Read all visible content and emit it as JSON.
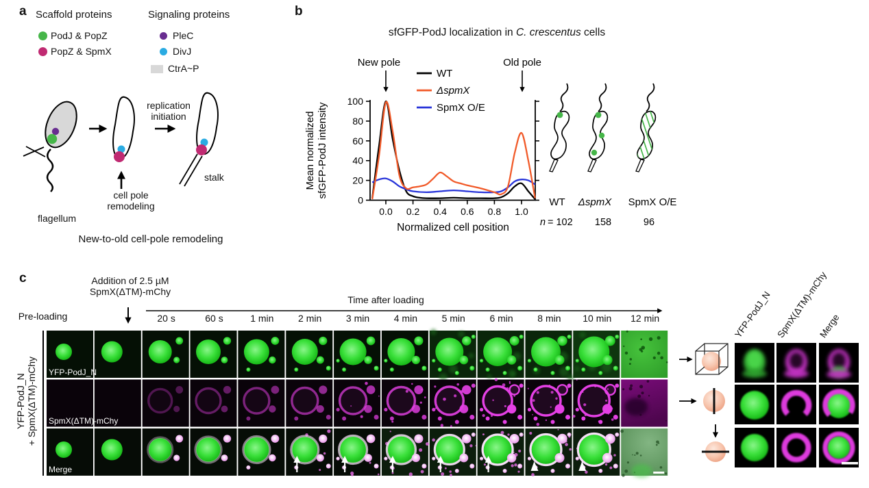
{
  "colors": {
    "green_dot": "#46b649",
    "magenta_dot": "#c02a72",
    "purple_dot": "#682d90",
    "cyan_dot": "#2aabe2",
    "gray_swatch": "#d8d8d8",
    "wt_line": "#000000",
    "spmx_del_line": "#f15a29",
    "spmx_oe_line": "#2633d9",
    "fluor_green": "#35e13c",
    "fluor_magenta": "#e440e4",
    "salmon_sphere": "#f7c4ac"
  },
  "panel_a": {
    "label": "a",
    "scaffold": {
      "title": "Scaffold proteins",
      "items": [
        {
          "name": "PodJ & PopZ",
          "color": "#46b649"
        },
        {
          "name": "PopZ & SpmX",
          "color": "#c02a72"
        }
      ]
    },
    "signaling": {
      "title": "Signaling proteins",
      "items": [
        {
          "name": "PleC",
          "color": "#682d90"
        },
        {
          "name": "DivJ",
          "color": "#2aabe2"
        },
        {
          "name": "CtrA~P",
          "color": "#d8d8d8"
        }
      ]
    },
    "labels": {
      "replication": "replication initiation",
      "remodeling": "cell pole remodeling",
      "flagellum": "flagellum",
      "stalk": "stalk"
    },
    "caption": "New-to-old cell-pole remodeling"
  },
  "panel_b": {
    "label": "b",
    "title_parts": {
      "pre": "sfGFP-PodJ localization in ",
      "italic": "C. crescentus",
      "post": " cells"
    },
    "new_pole": "New pole",
    "old_pole": "Old pole",
    "schematics": {
      "labels": [
        "WT",
        "ΔspmX",
        "SpmX O/E"
      ],
      "n_symbol": "n",
      "n_values": [
        "= 102",
        "158",
        "96"
      ]
    }
  },
  "chart_data": {
    "type": "line",
    "title": "sfGFP-PodJ localization in C. crescentus cells",
    "xlabel": "Normalized cell position",
    "ylabel": "Mean normalized sfGFP-PodJ intensity",
    "ylabel_lines": [
      "Mean normalized",
      "sfGFP-PodJ intensity"
    ],
    "xlim": [
      -0.12,
      1.1
    ],
    "ylim": [
      0,
      105
    ],
    "x_ticks": [
      0.0,
      0.2,
      0.4,
      0.6,
      0.8,
      1.0
    ],
    "x_tick_labels": [
      "0.0",
      "0.2",
      "0.4",
      "0.6",
      "0.8",
      "1.0"
    ],
    "y_ticks": [
      0,
      20,
      40,
      60,
      80,
      100
    ],
    "y_tick_labels": [
      "0",
      "20",
      "40",
      "60",
      "80",
      "100"
    ],
    "grid": false,
    "legend_position": "upper-center inside",
    "annotations": [
      "New pole arrow at x=0.0",
      "Old pole arrow at x=1.0"
    ],
    "series": [
      {
        "name": "WT",
        "color": "#000000",
        "italic": false,
        "points": [
          [
            -0.1,
            2
          ],
          [
            -0.05,
            55
          ],
          [
            0,
            100
          ],
          [
            0.05,
            62
          ],
          [
            0.1,
            30
          ],
          [
            0.15,
            9
          ],
          [
            0.2,
            4
          ],
          [
            0.25,
            2.5
          ],
          [
            0.3,
            2
          ],
          [
            0.4,
            2
          ],
          [
            0.5,
            2.5
          ],
          [
            0.6,
            2
          ],
          [
            0.7,
            2
          ],
          [
            0.8,
            2
          ],
          [
            0.85,
            3
          ],
          [
            0.9,
            7
          ],
          [
            0.95,
            14
          ],
          [
            1,
            17
          ],
          [
            1.05,
            9
          ],
          [
            1.1,
            1
          ]
        ]
      },
      {
        "name": "ΔspmX",
        "color": "#f15a29",
        "italic": true,
        "points": [
          [
            -0.1,
            1
          ],
          [
            -0.05,
            45
          ],
          [
            0,
            99
          ],
          [
            0.05,
            70
          ],
          [
            0.1,
            25
          ],
          [
            0.15,
            12
          ],
          [
            0.2,
            13
          ],
          [
            0.25,
            14
          ],
          [
            0.3,
            16
          ],
          [
            0.35,
            22
          ],
          [
            0.4,
            28
          ],
          [
            0.45,
            24
          ],
          [
            0.5,
            19
          ],
          [
            0.55,
            17
          ],
          [
            0.6,
            15
          ],
          [
            0.7,
            12
          ],
          [
            0.8,
            8
          ],
          [
            0.85,
            6
          ],
          [
            0.9,
            14
          ],
          [
            0.95,
            48
          ],
          [
            1,
            68
          ],
          [
            1.05,
            40
          ],
          [
            1.1,
            2
          ]
        ]
      },
      {
        "name": "SpmX O/E",
        "color": "#2633d9",
        "italic": false,
        "points": [
          [
            -0.1,
            18
          ],
          [
            -0.05,
            21
          ],
          [
            0,
            22
          ],
          [
            0.05,
            19
          ],
          [
            0.1,
            14
          ],
          [
            0.15,
            11
          ],
          [
            0.2,
            9
          ],
          [
            0.3,
            8
          ],
          [
            0.4,
            9
          ],
          [
            0.5,
            10
          ],
          [
            0.6,
            9
          ],
          [
            0.7,
            8
          ],
          [
            0.8,
            8
          ],
          [
            0.85,
            9
          ],
          [
            0.9,
            13
          ],
          [
            0.95,
            19
          ],
          [
            1,
            21
          ],
          [
            1.05,
            20
          ],
          [
            1.1,
            16
          ]
        ]
      }
    ],
    "sample_sizes": {
      "WT": 102,
      "ΔspmX": 158,
      "SpmX O/E": 96
    }
  },
  "panel_c": {
    "label": "c",
    "addition_line1": "Addition of 2.5 µM",
    "addition_line2": "SpmX(ΔTM)-mChy",
    "preloading": "Pre-loading",
    "time_axis_label": "Time after loading",
    "timepoints": [
      "20 s",
      "60 s",
      "1 min",
      "2 min",
      "3 min",
      "4 min",
      "5 min",
      "6 min",
      "8 min",
      "10 min",
      "12 min"
    ],
    "merge_arrow_timepoints": [
      "2 min",
      "3 min",
      "4 min",
      "5 min",
      "6 min"
    ],
    "merge_arrowhead_timepoints": [
      "8 min",
      "10 min"
    ],
    "left_label_line1": "YFP-PodJ_N",
    "left_label_line2": "+ SpmX(ΔTM)-mChy",
    "row_labels": [
      "YFP-PodJ_N",
      "SpmX(ΔTM)-mChy",
      "Merge"
    ],
    "grid_headers": [
      "YFP-PodJ_N",
      "SpmX(ΔTM)-mChy",
      "Merge"
    ]
  }
}
